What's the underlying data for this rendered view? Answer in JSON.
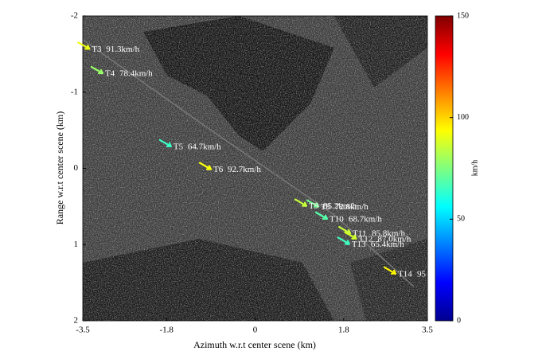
{
  "chart_data": {
    "type": "scatter",
    "xlabel": "Azimuth w.r.t center scene (km)",
    "ylabel": "Range w.r.t center scene (km)",
    "xlim": [
      -3.5,
      3.5
    ],
    "xticks": [
      -3.5,
      -1.8,
      0,
      1.8,
      3.5
    ],
    "ylim": [
      -2,
      2
    ],
    "yticks": [
      -2,
      -1,
      0,
      1,
      2
    ],
    "y_reversed": true,
    "labels": [
      "T3",
      "T4",
      "T5",
      "T6",
      "T8",
      "T9",
      "T10",
      "T11",
      "T12",
      "T13",
      "T14"
    ],
    "x": [
      -3.48,
      -3.21,
      -1.82,
      -1.01,
      1.17,
      0.93,
      1.35,
      1.82,
      1.94,
      1.8,
      2.74
    ],
    "values": [
      -1.61,
      -1.29,
      -0.33,
      -0.03,
      0.46,
      0.45,
      0.62,
      0.81,
      0.88,
      0.95,
      1.34
    ],
    "speeds": [
      91.3,
      78.4,
      64.7,
      92.7,
      72.8,
      85.2,
      68.7,
      85.8,
      87.0,
      65.4,
      95
    ],
    "value_labels": [
      "91.3km/h",
      "78.4km/h",
      "64.7km/h",
      "92.7km/h",
      "72.8km/h",
      "85.2km/h",
      "68.7km/h",
      "85.8km/h",
      "87.0km/h",
      "65.4km/h",
      "95"
    ],
    "colorbar": {
      "label": "km/h",
      "clim": [
        0,
        150
      ],
      "ticks": [
        0,
        50,
        100,
        150
      ],
      "colormap": "jet"
    }
  }
}
